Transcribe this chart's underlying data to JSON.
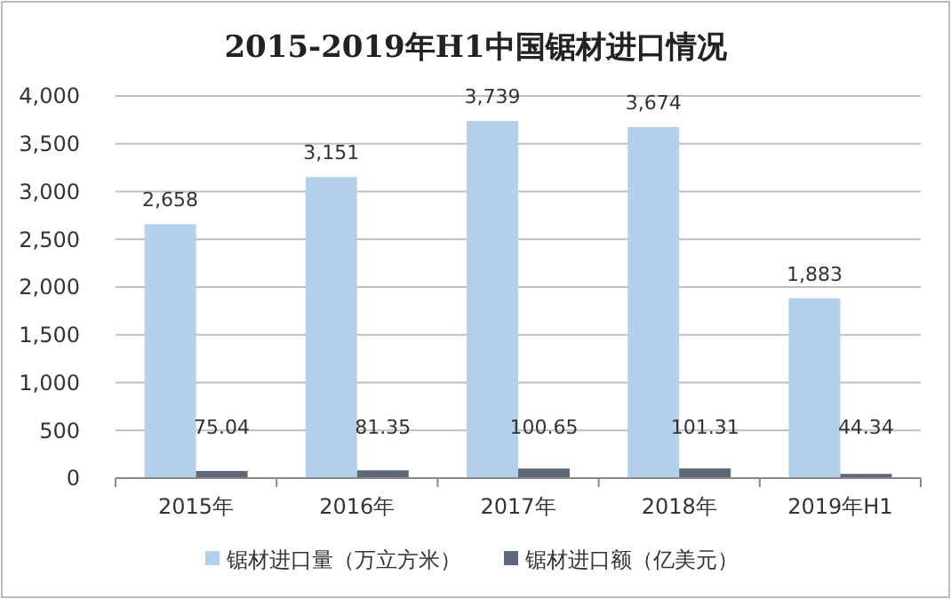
{
  "chart_data": {
    "type": "bar",
    "title": "2015-2019年H1中国锯材进口情况",
    "categories": [
      "2015年",
      "2016年",
      "2017年",
      "2018年",
      "2019年H1"
    ],
    "series": [
      {
        "name": "锯材进口量（万立方米）",
        "color": "#b4d0ec",
        "values": [
          2658,
          3151,
          3739,
          3674,
          1883
        ]
      },
      {
        "name": "锯材进口额（亿美元）",
        "color": "#5f6878",
        "values": [
          75.04,
          81.35,
          100.65,
          101.31,
          44.34
        ]
      }
    ],
    "value_labels": [
      [
        "2,658",
        "3,151",
        "3,739",
        "3,674",
        "1,883"
      ],
      [
        "75.04",
        "81.35",
        "100.65",
        "101.31",
        "44.34"
      ]
    ],
    "ylim": [
      0,
      4000
    ],
    "yticks": [
      0,
      {
        "value": 500,
        "label": "500"
      },
      {
        "value": 1000,
        "label": "1,000"
      },
      {
        "value": 1500,
        "label": "1,500"
      },
      {
        "value": 2000,
        "label": "2,000"
      },
      {
        "value": 2500,
        "label": "2,500"
      },
      {
        "value": 3000,
        "label": "3,000"
      },
      {
        "value": 3500,
        "label": "3,500"
      },
      {
        "value": 4000,
        "label": "4,000"
      }
    ],
    "grid": "y",
    "legend": "bottom"
  }
}
